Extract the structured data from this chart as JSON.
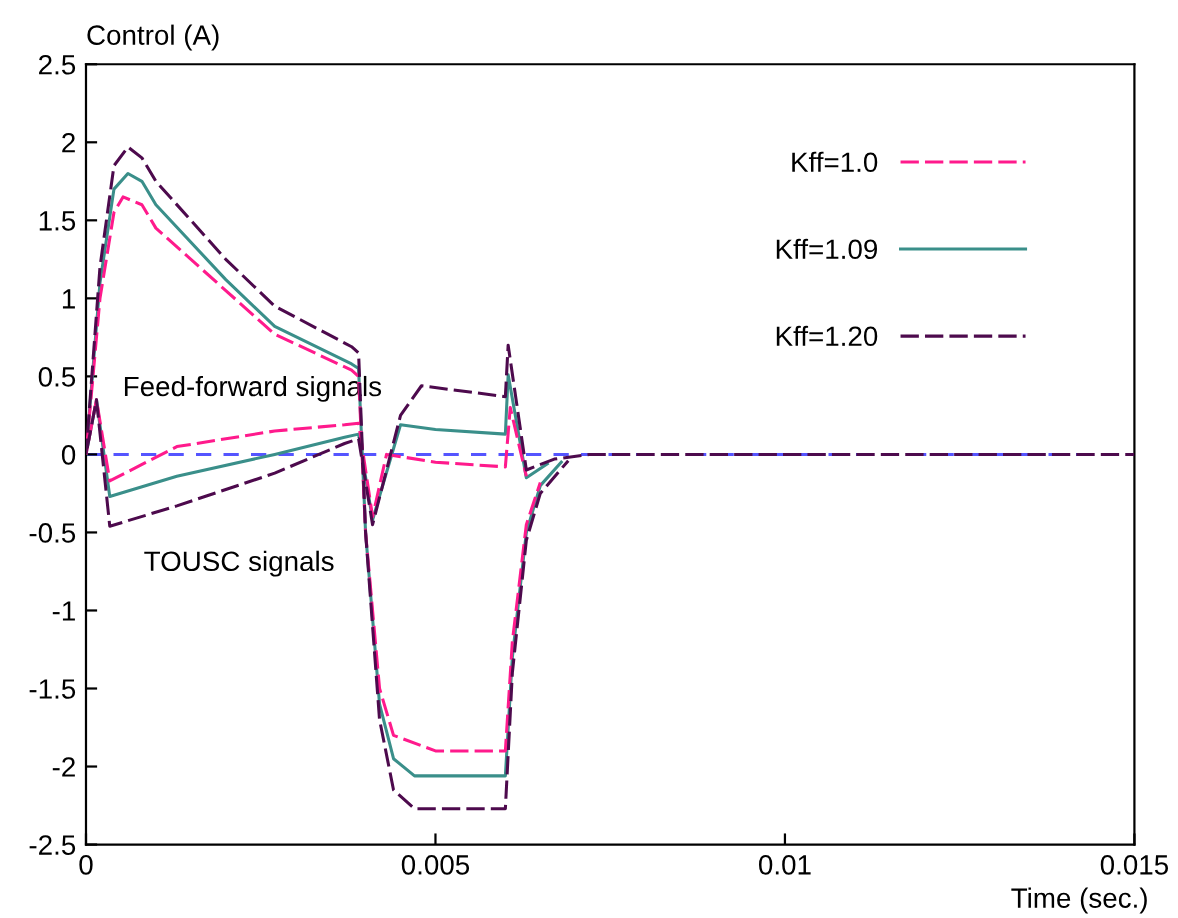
{
  "chart_data": {
    "type": "line",
    "ylabel": "Control (A)",
    "xlabel": "Time (sec.)",
    "xlim": [
      0,
      0.015
    ],
    "xticks": [
      0,
      0.005,
      0.01,
      0.015
    ],
    "ylim": [
      -2.5,
      2.5
    ],
    "yticks": [
      -2.5,
      -2,
      -1.5,
      -1,
      -0.5,
      0,
      0.5,
      1,
      1.5,
      2,
      2.5
    ],
    "grid": false,
    "legend": "top right",
    "marker": "none",
    "annotations": [
      "Feed-forward signals",
      "TOUSC signals"
    ],
    "ref_lines": [
      {
        "axis": "y",
        "value": 0,
        "color": "#5555ff",
        "line_style": "dashed"
      }
    ],
    "series": [
      {
        "name": "Kff=1.0",
        "color": "#ff1a8c",
        "line_style": "dashed",
        "x": [
          0,
          0.0002,
          0.0004,
          0.00053,
          0.0008,
          0.001,
          0.002,
          0.0027,
          0.0038,
          0.0039,
          0.004,
          0.0042,
          0.0044,
          0.005,
          0.006,
          0.0061,
          0.0063,
          0.0065
        ],
        "values": [
          0,
          1.0,
          1.55,
          1.65,
          1.6,
          1.45,
          1.05,
          0.77,
          0.54,
          0.5,
          -0.5,
          -1.5,
          -1.8,
          -1.9,
          -1.9,
          -1.2,
          -0.45,
          -0.18
        ]
      },
      {
        "color": "#ff1a8c",
        "line_style": "dashed",
        "x": [
          0,
          0.00015,
          0.00034,
          0.0013,
          0.0027,
          0.0037,
          0.0039,
          0.0041,
          0.0043,
          0.005,
          0.006,
          0.00607,
          0.0063
        ],
        "values": [
          0,
          0.35,
          -0.17,
          0.05,
          0.15,
          0.19,
          0.2,
          -0.4,
          0.0,
          -0.05,
          -0.08,
          0.3,
          -0.14
        ]
      },
      {
        "name": "Kff=1.09",
        "color": "#3a8f8a",
        "line_style": "solid",
        "x": [
          0,
          0.0002,
          0.0004,
          0.0006,
          0.0008,
          0.001,
          0.002,
          0.0027,
          0.0038,
          0.0039,
          0.004,
          0.0042,
          0.0044,
          0.0047,
          0.006,
          0.0061,
          0.0063,
          0.0065,
          0.0068
        ],
        "values": [
          0,
          1.1,
          1.7,
          1.8,
          1.75,
          1.6,
          1.12,
          0.82,
          0.58,
          0.55,
          -0.5,
          -1.6,
          -1.95,
          -2.06,
          -2.06,
          -1.3,
          -0.5,
          -0.2,
          -0.05
        ]
      },
      {
        "color": "#3a8f8a",
        "line_style": "solid",
        "x": [
          0,
          0.00015,
          0.00034,
          0.0013,
          0.0027,
          0.0037,
          0.0039,
          0.0041,
          0.0045,
          0.005,
          0.006,
          0.00604,
          0.0063,
          0.0066
        ],
        "values": [
          0,
          0.35,
          -0.27,
          -0.14,
          0.0,
          0.11,
          0.13,
          -0.42,
          0.19,
          0.16,
          0.13,
          0.51,
          -0.15,
          -0.06
        ]
      },
      {
        "name": "Kff=1.20",
        "color": "#4d0a4d",
        "line_style": "dashed",
        "x": [
          0,
          0.0002,
          0.0004,
          0.0006,
          0.0008,
          0.001,
          0.002,
          0.0027,
          0.0038,
          0.0039,
          0.004,
          0.0042,
          0.0044,
          0.0047,
          0.006,
          0.0061,
          0.0063,
          0.0065,
          0.0069
        ],
        "values": [
          0,
          1.2,
          1.85,
          1.97,
          1.9,
          1.75,
          1.25,
          0.95,
          0.69,
          0.65,
          -0.5,
          -1.7,
          -2.15,
          -2.27,
          -2.27,
          -1.4,
          -0.55,
          -0.25,
          -0.04
        ]
      },
      {
        "color": "#4d0a4d",
        "line_style": "dashed",
        "x": [
          0,
          0.00015,
          0.00034,
          0.0013,
          0.0027,
          0.0037,
          0.0039,
          0.0041,
          0.0045,
          0.0048,
          0.006,
          0.00604,
          0.0063,
          0.0067,
          0.0072,
          0.015
        ],
        "values": [
          0,
          0.35,
          -0.46,
          -0.33,
          -0.12,
          0.07,
          0.1,
          -0.45,
          0.25,
          0.44,
          0.37,
          0.7,
          -0.1,
          -0.03,
          0,
          0
        ]
      }
    ]
  }
}
